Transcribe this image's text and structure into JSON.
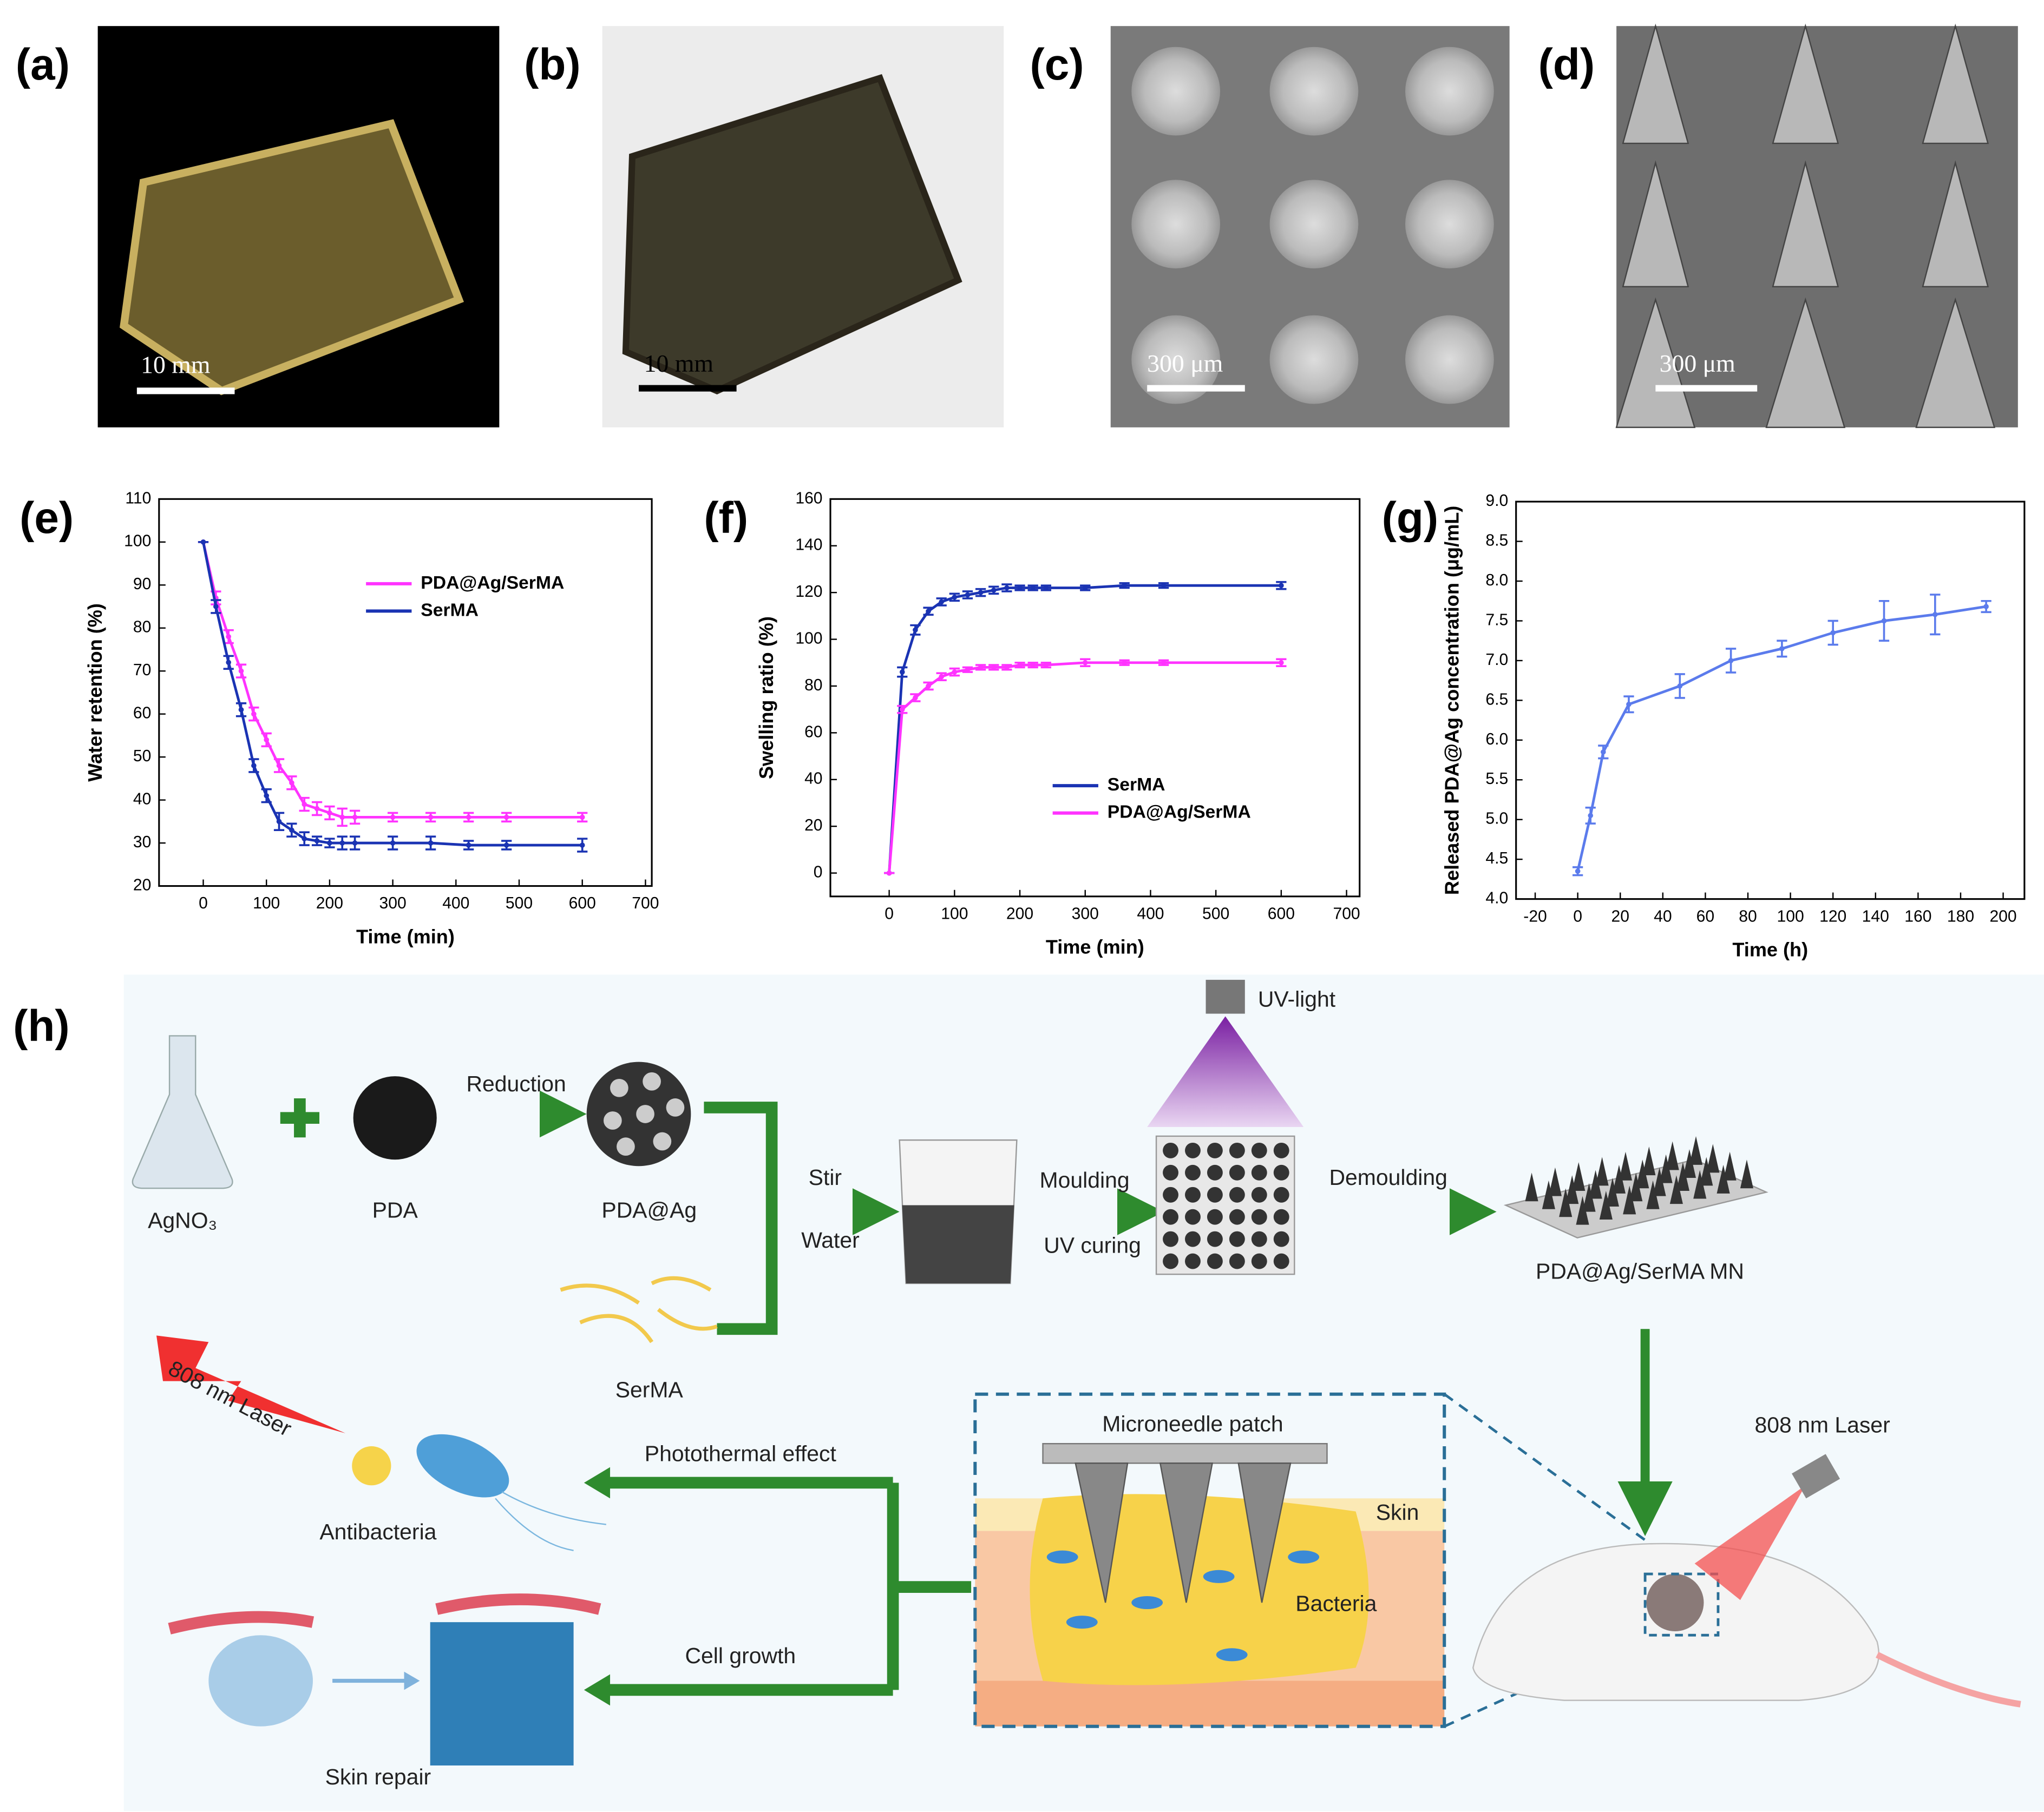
{
  "panels": {
    "a": "(a)",
    "b": "(b)",
    "c": "(c)",
    "d": "(d)",
    "h": "(h)"
  },
  "photos": [
    {
      "scale": "10 mm"
    },
    {
      "scale": "10 mm"
    },
    {
      "scale": "300 μm"
    },
    {
      "scale": "300 μm"
    }
  ],
  "chart_data": [
    {
      "type": "line",
      "label": "(e)",
      "xlabel": "Time (min)",
      "ylabel": "Water retention (%)",
      "x": [
        0,
        20,
        40,
        60,
        80,
        100,
        120,
        140,
        160,
        180,
        200,
        220,
        240,
        300,
        360,
        420,
        480,
        600
      ],
      "series": [
        {
          "name": "PDA@Ag/SerMA",
          "color": "#ff33ff",
          "values": [
            100,
            87,
            78,
            70,
            60,
            54,
            48,
            44,
            39,
            38,
            37,
            36,
            36,
            36,
            36,
            36,
            36,
            36
          ],
          "errors": [
            0,
            1.5,
            1.5,
            1.5,
            1.5,
            1.5,
            1.5,
            1.5,
            1.5,
            1.5,
            1.5,
            2,
            1.5,
            1,
            1,
            1,
            1,
            1
          ]
        },
        {
          "name": "SerMA",
          "color": "#1a33b3",
          "values": [
            100,
            85,
            72,
            61,
            48,
            41,
            35,
            33,
            31,
            30.5,
            30,
            30,
            30,
            30,
            30,
            29.5,
            29.5,
            29.5
          ],
          "errors": [
            0,
            1.5,
            1.5,
            1.5,
            1.5,
            1.5,
            2,
            1.5,
            1.5,
            1,
            1,
            1.5,
            1.5,
            1.5,
            1.5,
            1,
            1,
            1.5
          ]
        }
      ],
      "xlim": [
        -70,
        710
      ],
      "ylim": [
        20,
        110
      ],
      "xticks": [
        0,
        100,
        200,
        300,
        400,
        500,
        600,
        700
      ],
      "yticks": [
        20,
        30,
        40,
        50,
        60,
        70,
        80,
        90,
        100,
        110
      ],
      "legend": "upper right"
    },
    {
      "type": "line",
      "label": "(f)",
      "xlabel": "Time (min)",
      "ylabel": "Swelling ratio (%)",
      "x": [
        0,
        20,
        40,
        60,
        80,
        100,
        120,
        140,
        160,
        180,
        200,
        220,
        240,
        300,
        360,
        420,
        600
      ],
      "series": [
        {
          "name": "SerMA",
          "color": "#1a33b3",
          "values": [
            0,
            86,
            104,
            112,
            116,
            118,
            119,
            120,
            121,
            122,
            122,
            122,
            122,
            122,
            123,
            123,
            123
          ],
          "errors": [
            0,
            2,
            2,
            1.5,
            1.5,
            1.5,
            1.5,
            1.5,
            1.5,
            1.5,
            1,
            1,
            1,
            1,
            1,
            1,
            1.5
          ]
        },
        {
          "name": "PDA@Ag/SerMA",
          "color": "#ff33ff",
          "values": [
            0,
            70,
            75,
            80,
            84,
            86,
            87,
            88,
            88,
            88,
            89,
            89,
            89,
            90,
            90,
            90,
            90
          ],
          "errors": [
            0,
            1.5,
            1.5,
            1.5,
            1.5,
            1.5,
            1,
            1,
            1,
            1,
            1,
            1,
            1,
            1.5,
            1,
            1,
            1.5
          ]
        }
      ],
      "xlim": [
        -90,
        720
      ],
      "ylim": [
        -10,
        160
      ],
      "xticks": [
        0,
        100,
        200,
        300,
        400,
        500,
        600,
        700
      ],
      "yticks": [
        0,
        20,
        40,
        60,
        80,
        100,
        120,
        140,
        160
      ],
      "legend": "lower right"
    },
    {
      "type": "line",
      "label": "(g)",
      "xlabel": "Time (h)",
      "ylabel": "Released PDA@Ag concentration (μg/mL)",
      "x": [
        0,
        6,
        12,
        24,
        48,
        72,
        96,
        120,
        144,
        168,
        192
      ],
      "series": [
        {
          "color": "#5b7bec",
          "values": [
            4.35,
            5.05,
            5.85,
            6.45,
            6.68,
            7.0,
            7.15,
            7.35,
            7.5,
            7.58,
            7.68
          ],
          "errors": [
            0.05,
            0.1,
            0.08,
            0.1,
            0.15,
            0.15,
            0.1,
            0.15,
            0.25,
            0.25,
            0.07
          ]
        }
      ],
      "xlim": [
        -29,
        210
      ],
      "ylim": [
        4,
        9
      ],
      "xticks": [
        -20,
        0,
        20,
        40,
        60,
        80,
        100,
        120,
        140,
        160,
        180,
        200
      ],
      "yticks": [
        {
          "value": 4,
          "label": "4.0"
        },
        4.5,
        {
          "value": 5,
          "label": "5.0"
        },
        5.5,
        {
          "value": 6,
          "label": "6.0"
        },
        6.5,
        {
          "value": 7,
          "label": "7.0"
        },
        7.5,
        {
          "value": 8,
          "label": "8.0"
        },
        8.5,
        {
          "value": 9,
          "label": "9.0"
        }
      ]
    }
  ],
  "diagram": {
    "uv": "UV-light",
    "agno3": "AgNO₃",
    "pda": "PDA",
    "reduction": "Reduction",
    "pdaag": "PDA@Ag",
    "serma": "SerMA",
    "stir": "Stir",
    "water": "Water",
    "moulding": "Moulding",
    "uvcuring": "UV curing",
    "demoulding": "Demoulding",
    "mn": "PDA@Ag/SerMA MN",
    "laser1": "808 nm Laser",
    "antibacteria": "Antibacteria",
    "photothermal": "Photothermal effect",
    "cellgrowth": "Cell growth",
    "skinrepair": "Skin repair",
    "patch": "Microneedle patch",
    "skin": "Skin",
    "bacteria": "Bacteria",
    "laser2": "808 nm Laser"
  }
}
